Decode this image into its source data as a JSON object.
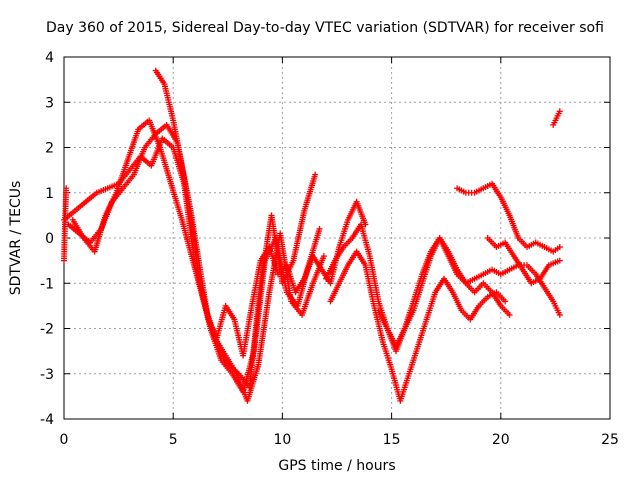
{
  "chart_data": {
    "type": "scatter",
    "title": "Day 360 of 2015, Sidereal Day-to-day VTEC variation (SDTVAR) for receiver sofi",
    "xlabel": "GPS time / hours",
    "ylabel": "SDTVAR / TECUs",
    "xlim": [
      0,
      25
    ],
    "ylim": [
      -4,
      4
    ],
    "xticks": [
      0,
      5,
      10,
      15,
      20,
      25
    ],
    "yticks": [
      -4,
      -3,
      -2,
      -1,
      0,
      1,
      2,
      3,
      4
    ],
    "grid": true,
    "marker": "+",
    "color": "#ff0000",
    "series": [
      {
        "name": "trace-1",
        "x": [
          0.0,
          0.5,
          1.0,
          1.5,
          2.0,
          2.5,
          3.0,
          3.5,
          4.0,
          4.5,
          5.0,
          5.5,
          6.0,
          6.5,
          7.0,
          7.5,
          8.0,
          8.5,
          9.0,
          9.5,
          10.0,
          10.5,
          11.0,
          11.5
        ],
        "y": [
          0.4,
          0.6,
          0.8,
          1.0,
          1.1,
          1.2,
          1.5,
          1.8,
          1.6,
          2.2,
          2.0,
          1.2,
          -0.6,
          -1.6,
          -2.3,
          -2.8,
          -3.0,
          -3.3,
          -1.0,
          0.5,
          -1.0,
          -0.5,
          0.6,
          1.4
        ]
      },
      {
        "name": "trace-2",
        "x": [
          0.2,
          0.7,
          1.2,
          1.7,
          2.2,
          2.7,
          3.2,
          3.7,
          4.2,
          4.7,
          5.2,
          5.7,
          6.2,
          6.7,
          7.2,
          7.7,
          8.2,
          8.7,
          9.2,
          9.7,
          10.2,
          10.7,
          11.2,
          11.7
        ],
        "y": [
          0.3,
          0.1,
          -0.1,
          0.2,
          0.8,
          1.1,
          1.4,
          2.0,
          2.3,
          2.5,
          2.1,
          0.8,
          -0.9,
          -2.0,
          -2.7,
          -3.0,
          -3.4,
          -2.5,
          -0.5,
          0.0,
          -1.2,
          -1.5,
          -0.6,
          0.2
        ]
      },
      {
        "name": "trace-3",
        "x": [
          0.4,
          0.9,
          1.4,
          1.9,
          2.4,
          2.9,
          3.4,
          3.9,
          4.4,
          4.9,
          5.4,
          5.9,
          6.4,
          6.9,
          7.4,
          7.9,
          8.4,
          8.9,
          9.4,
          9.9,
          10.4,
          10.9,
          11.4,
          11.9
        ],
        "y": [
          0.4,
          0.0,
          -0.3,
          0.5,
          1.0,
          1.7,
          2.4,
          2.6,
          2.0,
          1.2,
          0.4,
          -0.5,
          -1.4,
          -2.2,
          -2.6,
          -3.0,
          -3.6,
          -2.8,
          -1.2,
          0.1,
          -1.4,
          -1.7,
          -1.0,
          -0.4
        ]
      },
      {
        "name": "trace-4",
        "x": [
          4.2,
          4.6,
          5.0,
          5.4,
          5.8,
          6.2,
          6.6,
          7.0,
          7.4,
          7.8,
          8.2,
          8.6,
          9.0,
          9.4,
          9.8,
          10.2,
          10.6,
          11.0,
          11.4,
          11.8,
          12.2,
          12.6,
          13.0,
          13.4,
          13.8
        ],
        "y": [
          3.7,
          3.4,
          2.6,
          1.6,
          0.6,
          -0.6,
          -1.8,
          -2.2,
          -1.5,
          -1.8,
          -2.6,
          -1.5,
          -0.5,
          -0.2,
          -0.8,
          -0.6,
          -1.2,
          -0.9,
          -0.4,
          -0.7,
          -1.0,
          -0.2,
          0.4,
          0.8,
          0.3
        ]
      },
      {
        "name": "trace-5",
        "x": [
          12.0,
          12.4,
          12.8,
          13.2,
          13.6,
          14.0,
          14.4,
          14.8,
          15.2,
          15.6,
          16.0,
          16.4,
          16.8,
          17.2,
          17.6,
          18.0,
          18.4,
          18.8,
          19.2,
          19.6,
          20.0,
          20.4,
          20.8,
          21.2,
          21.6,
          22.0,
          22.4,
          22.7
        ],
        "y": [
          -0.9,
          -0.5,
          -0.2,
          0.0,
          0.3,
          -0.4,
          -1.4,
          -2.0,
          -2.5,
          -2.0,
          -1.6,
          -1.0,
          -0.4,
          0.0,
          -0.4,
          -0.8,
          -1.0,
          -0.9,
          -0.8,
          -0.7,
          -0.8,
          -0.7,
          -0.6,
          -0.6,
          -0.8,
          -1.1,
          -1.4,
          -1.7
        ]
      },
      {
        "name": "trace-6",
        "x": [
          12.2,
          12.6,
          13.0,
          13.4,
          13.8,
          14.2,
          14.6,
          15.0,
          15.4,
          15.8,
          16.2,
          16.6,
          17.0,
          17.4,
          17.8,
          18.2,
          18.6,
          19.0,
          19.4,
          19.8,
          20.2
        ],
        "y": [
          -1.4,
          -1.0,
          -0.6,
          -0.3,
          -0.6,
          -1.5,
          -2.3,
          -2.9,
          -3.6,
          -3.0,
          -2.4,
          -1.8,
          -1.2,
          -0.9,
          -1.2,
          -1.6,
          -1.8,
          -1.5,
          -1.3,
          -1.2,
          -1.4
        ]
      },
      {
        "name": "trace-7",
        "x": [
          14.4,
          14.8,
          15.2,
          15.6,
          16.0,
          16.4,
          16.8,
          17.2,
          17.6,
          18.0,
          18.4,
          18.8,
          19.2,
          19.6,
          20.0,
          20.4
        ],
        "y": [
          -1.6,
          -2.0,
          -2.4,
          -2.0,
          -1.4,
          -0.8,
          -0.3,
          0.0,
          -0.3,
          -0.7,
          -1.0,
          -1.2,
          -1.0,
          -1.2,
          -1.5,
          -1.7
        ]
      },
      {
        "name": "trace-8",
        "x": [
          18.0,
          18.4,
          18.8,
          19.2,
          19.6,
          20.0,
          20.4,
          20.8,
          21.2,
          21.6,
          22.0,
          22.4,
          22.7
        ],
        "y": [
          1.1,
          1.0,
          1.0,
          1.1,
          1.2,
          0.9,
          0.5,
          0.0,
          -0.2,
          -0.1,
          -0.2,
          -0.3,
          -0.2
        ]
      },
      {
        "name": "trace-9",
        "x": [
          19.4,
          19.8,
          20.2,
          20.6,
          21.0,
          21.4,
          21.8,
          22.2,
          22.7
        ],
        "y": [
          0.0,
          -0.2,
          -0.1,
          -0.4,
          -0.7,
          -1.0,
          -0.9,
          -0.6,
          -0.5
        ]
      },
      {
        "name": "trace-10",
        "x": [
          22.4,
          22.5,
          22.6,
          22.7
        ],
        "y": [
          2.5,
          2.6,
          2.7,
          2.8
        ]
      },
      {
        "name": "trace-11",
        "x": [
          0.0,
          0.05,
          0.1
        ],
        "y": [
          -0.5,
          0.4,
          1.1
        ]
      }
    ]
  }
}
